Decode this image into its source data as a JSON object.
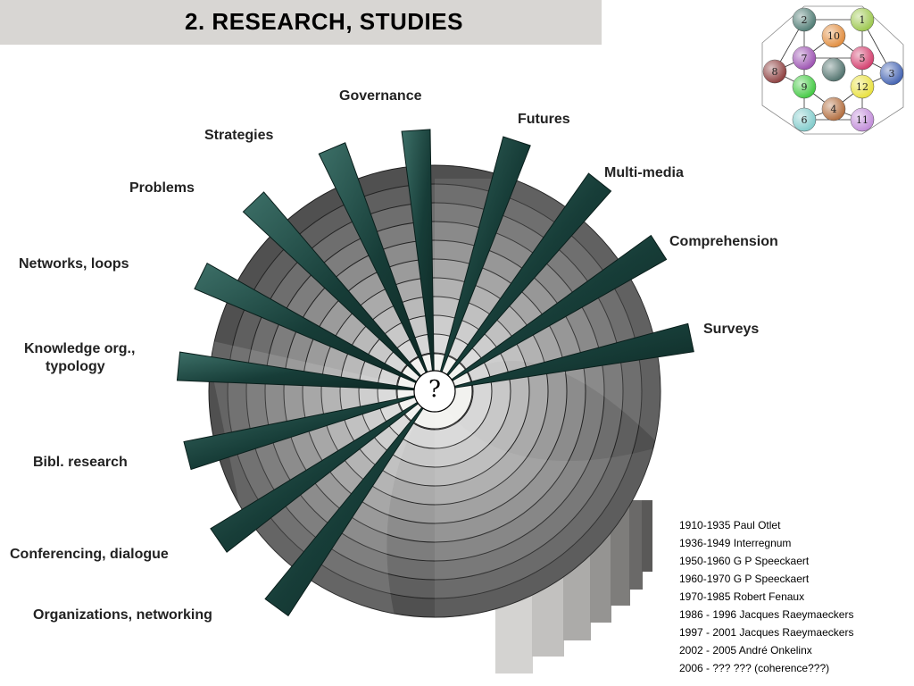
{
  "title": "2. RESEARCH, STUDIES",
  "center_symbol": "?",
  "spokes": [
    "Governance",
    "Futures",
    "Multi-media",
    "Comprehension",
    "Surveys",
    "Strategies",
    "Problems",
    "Networks, loops",
    "Knowledge org.,",
    "typology",
    "Bibl. research",
    "Conferencing, dialogue",
    "Organizations, networking"
  ],
  "timeline": [
    "1910-1935 Paul Otlet",
    "1936-1949 Interregnum",
    "1950-1960 G P Speeckaert",
    "1960-1970 G P Speeckaert",
    "1970-1985 Robert Fenaux",
    "1986 - 1996 Jacques Raeymaeckers",
    "1997 - 2001 Jacques Raeymaeckers",
    "2002 - 2005 André Onkelinx",
    "2006 - ???   ???   (coherence???)"
  ],
  "icosahedron_nodes": [
    "1",
    "2",
    "3",
    "4",
    "5",
    "6",
    "7",
    "8",
    "9",
    "10",
    "11",
    "12"
  ],
  "colors": {
    "spoke": "#1f4a44",
    "title_bg": "#d8d6d3"
  }
}
